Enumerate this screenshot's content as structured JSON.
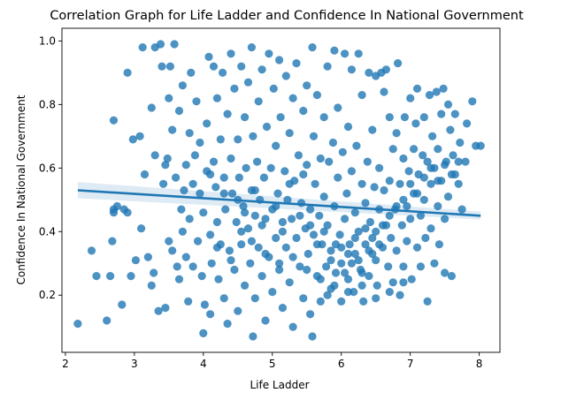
{
  "chart_data": {
    "type": "scatter",
    "title": "Correlation Graph for Life Ladder and Confidence In National Government",
    "xlabel": "Life Ladder",
    "ylabel": "Confidence In National Government",
    "xlim": [
      1.95,
      8.3
    ],
    "ylim": [
      0.02,
      1.04
    ],
    "xticks": [
      2,
      3,
      4,
      5,
      6,
      7,
      8
    ],
    "yticks": [
      0.2,
      0.4,
      0.6,
      0.8,
      1.0
    ],
    "xtick_labels": [
      "2",
      "3",
      "4",
      "5",
      "6",
      "7",
      "8"
    ],
    "ytick_labels": [
      "0.2",
      "0.4",
      "0.6",
      "0.8",
      "1.0"
    ],
    "point_color": "#1f77b4",
    "point_opacity": 0.8,
    "regression_line": {
      "x": [
        2.18,
        8.02
      ],
      "y": [
        0.53,
        0.45
      ],
      "ci_lower": [
        0.505,
        0.438
      ],
      "ci_upper": [
        0.556,
        0.463
      ],
      "color": "#1f77b4"
    },
    "points": [
      [
        2.18,
        0.11
      ],
      [
        2.38,
        0.34
      ],
      [
        2.45,
        0.26
      ],
      [
        2.6,
        0.12
      ],
      [
        2.65,
        0.26
      ],
      [
        2.68,
        0.37
      ],
      [
        2.7,
        0.75
      ],
      [
        2.7,
        0.47
      ],
      [
        2.7,
        0.46
      ],
      [
        2.75,
        0.48
      ],
      [
        2.82,
        0.17
      ],
      [
        2.85,
        0.47
      ],
      [
        2.9,
        0.46
      ],
      [
        2.9,
        0.9
      ],
      [
        2.95,
        0.26
      ],
      [
        2.98,
        0.69
      ],
      [
        3.02,
        0.31
      ],
      [
        3.08,
        0.7
      ],
      [
        3.1,
        0.41
      ],
      [
        3.12,
        0.98
      ],
      [
        3.15,
        0.58
      ],
      [
        3.2,
        0.32
      ],
      [
        3.25,
        0.79
      ],
      [
        3.25,
        0.23
      ],
      [
        3.28,
        0.27
      ],
      [
        3.3,
        0.98
      ],
      [
        3.3,
        0.64
      ],
      [
        3.35,
        0.15
      ],
      [
        3.38,
        0.99
      ],
      [
        3.4,
        0.92
      ],
      [
        3.42,
        0.55
      ],
      [
        3.45,
        0.16
      ],
      [
        3.45,
        0.61
      ],
      [
        3.48,
        0.63
      ],
      [
        3.5,
        0.82
      ],
      [
        3.5,
        0.37
      ],
      [
        3.52,
        0.92
      ],
      [
        3.55,
        0.72
      ],
      [
        3.55,
        0.34
      ],
      [
        3.58,
        0.99
      ],
      [
        3.6,
        0.57
      ],
      [
        3.62,
        0.29
      ],
      [
        3.65,
        0.25
      ],
      [
        3.65,
        0.78
      ],
      [
        3.68,
        0.47
      ],
      [
        3.7,
        0.86
      ],
      [
        3.7,
        0.4
      ],
      [
        3.72,
        0.53
      ],
      [
        3.75,
        0.32
      ],
      [
        3.75,
        0.61
      ],
      [
        3.78,
        0.18
      ],
      [
        3.8,
        0.71
      ],
      [
        3.8,
        0.44
      ],
      [
        3.82,
        0.9
      ],
      [
        3.85,
        0.29
      ],
      [
        3.85,
        0.55
      ],
      [
        3.88,
        0.64
      ],
      [
        3.9,
        0.81
      ],
      [
        3.92,
        0.37
      ],
      [
        3.95,
        0.52
      ],
      [
        3.95,
        0.68
      ],
      [
        3.98,
        0.26
      ],
      [
        4.0,
        0.08
      ],
      [
        4.0,
        0.46
      ],
      [
        4.02,
        0.17
      ],
      [
        4.05,
        0.59
      ],
      [
        4.05,
        0.74
      ],
      [
        4.08,
        0.95
      ],
      [
        4.1,
        0.39
      ],
      [
        4.1,
        0.14
      ],
      [
        4.12,
        0.3
      ],
      [
        4.15,
        0.92
      ],
      [
        4.15,
        0.62
      ],
      [
        4.18,
        0.54
      ],
      [
        4.2,
        0.82
      ],
      [
        4.2,
        0.43
      ],
      [
        4.22,
        0.25
      ],
      [
        4.25,
        0.69
      ],
      [
        4.25,
        0.36
      ],
      [
        4.28,
        0.9
      ],
      [
        4.3,
        0.57
      ],
      [
        4.3,
        0.19
      ],
      [
        4.32,
        0.47
      ],
      [
        4.35,
        0.77
      ],
      [
        4.35,
        0.11
      ],
      [
        4.38,
        0.34
      ],
      [
        4.4,
        0.63
      ],
      [
        4.4,
        0.96
      ],
      [
        4.42,
        0.52
      ],
      [
        4.45,
        0.28
      ],
      [
        4.45,
        0.85
      ],
      [
        4.48,
        0.43
      ],
      [
        4.5,
        0.69
      ],
      [
        4.5,
        0.15
      ],
      [
        4.52,
        0.57
      ],
      [
        4.55,
        0.36
      ],
      [
        4.55,
        0.92
      ],
      [
        4.58,
        0.48
      ],
      [
        4.6,
        0.76
      ],
      [
        4.6,
        0.23
      ],
      [
        4.62,
        0.6
      ],
      [
        4.65,
        0.41
      ],
      [
        4.65,
        0.87
      ],
      [
        4.68,
        0.3
      ],
      [
        4.7,
        0.98
      ],
      [
        4.7,
        0.53
      ],
      [
        4.72,
        0.07
      ],
      [
        4.72,
        0.7
      ],
      [
        4.75,
        0.45
      ],
      [
        4.75,
        0.19
      ],
      [
        4.78,
        0.62
      ],
      [
        4.8,
        0.35
      ],
      [
        4.8,
        0.81
      ],
      [
        4.82,
        0.5
      ],
      [
        4.85,
        0.26
      ],
      [
        4.85,
        0.91
      ],
      [
        4.88,
        0.57
      ],
      [
        4.9,
        0.12
      ],
      [
        4.9,
        0.44
      ],
      [
        4.92,
        0.73
      ],
      [
        4.95,
        0.32
      ],
      [
        4.95,
        0.96
      ],
      [
        4.98,
        0.6
      ],
      [
        5.0,
        0.47
      ],
      [
        5.0,
        0.21
      ],
      [
        5.02,
        0.85
      ],
      [
        5.05,
        0.38
      ],
      [
        5.05,
        0.67
      ],
      [
        5.08,
        0.52
      ],
      [
        5.1,
        0.94
      ],
      [
        5.1,
        0.28
      ],
      [
        5.12,
        0.76
      ],
      [
        5.15,
        0.43
      ],
      [
        5.15,
        0.16
      ],
      [
        5.18,
        0.59
      ],
      [
        5.2,
        0.89
      ],
      [
        5.2,
        0.35
      ],
      [
        5.22,
        0.5
      ],
      [
        5.25,
        0.71
      ],
      [
        5.25,
        0.24
      ],
      [
        5.28,
        0.44
      ],
      [
        5.3,
        0.82
      ],
      [
        5.3,
        0.1
      ],
      [
        5.32,
        0.56
      ],
      [
        5.35,
        0.38
      ],
      [
        5.35,
        0.93
      ],
      [
        5.38,
        0.64
      ],
      [
        5.4,
        0.29
      ],
      [
        5.42,
        0.49
      ],
      [
        5.45,
        0.78
      ],
      [
        5.45,
        0.19
      ],
      [
        5.48,
        0.41
      ],
      [
        5.5,
        0.61
      ],
      [
        5.5,
        0.86
      ],
      [
        5.52,
        0.33
      ],
      [
        5.55,
        0.47
      ],
      [
        5.55,
        0.14
      ],
      [
        5.58,
        0.07
      ],
      [
        5.58,
        0.98
      ],
      [
        5.6,
        0.7
      ],
      [
        5.6,
        0.39
      ],
      [
        5.62,
        0.55
      ],
      [
        5.65,
        0.26
      ],
      [
        5.65,
        0.83
      ],
      [
        5.68,
        0.45
      ],
      [
        5.7,
        0.63
      ],
      [
        5.7,
        0.18
      ],
      [
        5.72,
        0.36
      ],
      [
        5.75,
        0.76
      ],
      [
        5.75,
        0.51
      ],
      [
        5.78,
        0.29
      ],
      [
        5.8,
        0.92
      ],
      [
        5.8,
        0.42
      ],
      [
        5.82,
        0.62
      ],
      [
        5.85,
        0.22
      ],
      [
        5.85,
        0.34
      ],
      [
        5.88,
        0.68
      ],
      [
        5.9,
        0.97
      ],
      [
        5.9,
        0.48
      ],
      [
        5.92,
        0.27
      ],
      [
        5.95,
        0.57
      ],
      [
        5.95,
        0.79
      ],
      [
        5.98,
        0.39
      ],
      [
        6.0,
        0.18
      ],
      [
        6.0,
        0.3
      ],
      [
        6.02,
        0.65
      ],
      [
        6.05,
        0.44
      ],
      [
        6.05,
        0.96
      ],
      [
        6.08,
        0.52
      ],
      [
        6.1,
        0.25
      ],
      [
        6.1,
        0.73
      ],
      [
        6.12,
        0.36
      ],
      [
        6.15,
        0.59
      ],
      [
        6.15,
        0.91
      ],
      [
        6.18,
        0.21
      ],
      [
        6.2,
        0.46
      ],
      [
        6.2,
        0.33
      ],
      [
        6.22,
        0.67
      ],
      [
        6.25,
        0.96
      ],
      [
        6.25,
        0.4
      ],
      [
        6.28,
        0.28
      ],
      [
        6.3,
        0.55
      ],
      [
        6.3,
        0.83
      ],
      [
        6.32,
        0.18
      ],
      [
        6.35,
        0.49
      ],
      [
        6.35,
        0.36
      ],
      [
        6.38,
        0.62
      ],
      [
        6.4,
        0.9
      ],
      [
        6.4,
        0.26
      ],
      [
        6.42,
        0.43
      ],
      [
        6.45,
        0.72
      ],
      [
        6.45,
        0.33
      ],
      [
        6.48,
        0.54
      ],
      [
        6.5,
        0.89
      ],
      [
        6.5,
        0.4
      ],
      [
        6.52,
        0.23
      ],
      [
        6.55,
        0.6
      ],
      [
        6.55,
        0.47
      ],
      [
        6.58,
        0.9
      ],
      [
        6.6,
        0.35
      ],
      [
        6.62,
        0.53
      ],
      [
        6.62,
        0.84
      ],
      [
        6.65,
        0.91
      ],
      [
        6.65,
        0.42
      ],
      [
        6.68,
        0.29
      ],
      [
        6.7,
        0.76
      ],
      [
        6.7,
        0.56
      ],
      [
        6.72,
        0.38
      ],
      [
        6.75,
        0.66
      ],
      [
        6.75,
        0.24
      ],
      [
        6.78,
        0.47
      ],
      [
        6.8,
        0.71
      ],
      [
        6.8,
        0.34
      ],
      [
        6.82,
        0.93
      ],
      [
        6.85,
        0.55
      ],
      [
        6.85,
        0.2
      ],
      [
        6.88,
        0.42
      ],
      [
        6.9,
        0.63
      ],
      [
        6.9,
        0.29
      ],
      [
        6.92,
        0.76
      ],
      [
        6.95,
        0.48
      ],
      [
        6.95,
        0.37
      ],
      [
        6.98,
        0.59
      ],
      [
        7.0,
        0.44
      ],
      [
        7.0,
        0.82
      ],
      [
        7.02,
        0.25
      ],
      [
        7.05,
        0.66
      ],
      [
        7.05,
        0.52
      ],
      [
        7.08,
        0.74
      ],
      [
        7.1,
        0.35
      ],
      [
        7.1,
        0.85
      ],
      [
        7.12,
        0.58
      ],
      [
        7.15,
        0.45
      ],
      [
        7.15,
        0.29
      ],
      [
        7.18,
        0.64
      ],
      [
        7.2,
        0.76
      ],
      [
        7.2,
        0.5
      ],
      [
        7.22,
        0.38
      ],
      [
        7.25,
        0.62
      ],
      [
        7.25,
        0.18
      ],
      [
        7.28,
        0.83
      ],
      [
        7.3,
        0.55
      ],
      [
        7.3,
        0.41
      ],
      [
        7.32,
        0.7
      ],
      [
        7.35,
        0.6
      ],
      [
        7.35,
        0.3
      ],
      [
        7.38,
        0.84
      ],
      [
        7.4,
        0.48
      ],
      [
        7.4,
        0.66
      ],
      [
        7.42,
        0.36
      ],
      [
        7.45,
        0.77
      ],
      [
        7.45,
        0.56
      ],
      [
        7.48,
        0.85
      ],
      [
        7.5,
        0.44
      ],
      [
        7.5,
        0.27
      ],
      [
        7.52,
        0.62
      ],
      [
        7.55,
        0.8
      ],
      [
        7.55,
        0.51
      ],
      [
        7.58,
        0.72
      ],
      [
        7.6,
        0.26
      ],
      [
        7.62,
        0.64
      ],
      [
        7.65,
        0.58
      ],
      [
        7.65,
        0.77
      ],
      [
        7.7,
        0.55
      ],
      [
        7.72,
        0.68
      ],
      [
        7.75,
        0.47
      ],
      [
        7.8,
        0.62
      ],
      [
        7.82,
        0.74
      ],
      [
        7.9,
        0.81
      ],
      [
        7.95,
        0.67
      ],
      [
        8.02,
        0.67
      ],
      [
        4.1,
        0.58
      ],
      [
        4.3,
        0.52
      ],
      [
        4.5,
        0.5
      ],
      [
        4.6,
        0.46
      ],
      [
        4.75,
        0.53
      ],
      [
        4.85,
        0.42
      ],
      [
        5.05,
        0.48
      ],
      [
        5.15,
        0.4
      ],
      [
        5.25,
        0.55
      ],
      [
        5.4,
        0.45
      ],
      [
        5.45,
        0.58
      ],
      [
        5.55,
        0.42
      ],
      [
        5.65,
        0.36
      ],
      [
        5.75,
        0.4
      ],
      [
        5.85,
        0.31
      ],
      [
        5.92,
        0.36
      ],
      [
        6.0,
        0.35
      ],
      [
        6.05,
        0.27
      ],
      [
        6.1,
        0.33
      ],
      [
        6.15,
        0.3
      ],
      [
        6.2,
        0.38
      ],
      [
        6.25,
        0.31
      ],
      [
        6.3,
        0.27
      ],
      [
        6.35,
        0.41
      ],
      [
        6.4,
        0.34
      ],
      [
        6.45,
        0.38
      ],
      [
        6.5,
        0.31
      ],
      [
        6.55,
        0.36
      ],
      [
        6.6,
        0.42
      ],
      [
        6.7,
        0.45
      ],
      [
        6.8,
        0.48
      ],
      [
        6.9,
        0.5
      ],
      [
        7.0,
        0.55
      ],
      [
        7.1,
        0.52
      ],
      [
        7.2,
        0.57
      ],
      [
        7.3,
        0.6
      ],
      [
        7.4,
        0.56
      ],
      [
        7.5,
        0.61
      ],
      [
        7.6,
        0.58
      ],
      [
        7.7,
        0.62
      ],
      [
        4.2,
        0.35
      ],
      [
        4.4,
        0.31
      ],
      [
        4.55,
        0.4
      ],
      [
        4.7,
        0.37
      ],
      [
        4.9,
        0.33
      ],
      [
        5.1,
        0.3
      ],
      [
        5.3,
        0.32
      ],
      [
        5.5,
        0.28
      ],
      [
        5.7,
        0.25
      ],
      [
        5.8,
        0.2
      ],
      [
        5.9,
        0.23
      ],
      [
        6.1,
        0.21
      ],
      [
        6.3,
        0.23
      ],
      [
        6.5,
        0.19
      ],
      [
        6.7,
        0.21
      ],
      [
        6.9,
        0.24
      ]
    ]
  }
}
